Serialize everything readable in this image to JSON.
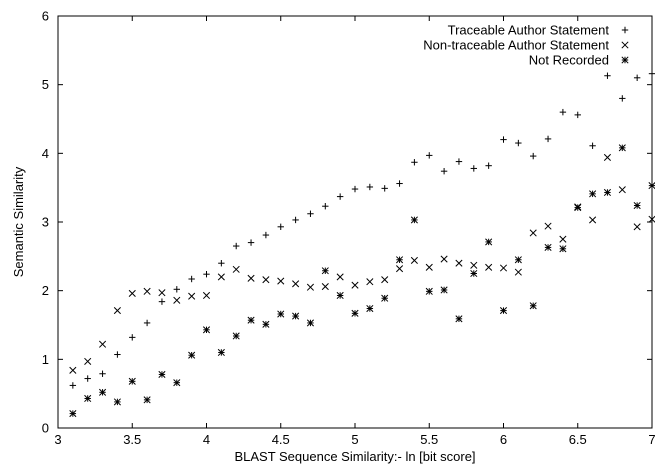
{
  "chart_data": {
    "type": "scatter",
    "xlabel": "BLAST Sequence Similarity:- ln [bit score]",
    "ylabel": "Semantic Similarity",
    "xlim": [
      3,
      7
    ],
    "ylim": [
      0,
      6
    ],
    "xticks": [
      "3",
      "3.5",
      "4",
      "4.5",
      "5",
      "5.5",
      "6",
      "6.5",
      "7"
    ],
    "yticks": [
      "0",
      "1",
      "2",
      "3",
      "4",
      "5",
      "6"
    ],
    "grid": false,
    "legend_position": "top-right",
    "series": [
      {
        "name": "Traceable Author Statement",
        "marker": "plus",
        "points": [
          [
            3.1,
            0.62
          ],
          [
            3.2,
            0.72
          ],
          [
            3.3,
            0.79
          ],
          [
            3.4,
            1.07
          ],
          [
            3.5,
            1.32
          ],
          [
            3.6,
            1.53
          ],
          [
            3.7,
            1.84
          ],
          [
            3.8,
            2.02
          ],
          [
            3.9,
            2.17
          ],
          [
            4.0,
            2.24
          ],
          [
            4.1,
            2.4
          ],
          [
            4.2,
            2.65
          ],
          [
            4.3,
            2.7
          ],
          [
            4.4,
            2.81
          ],
          [
            4.5,
            2.93
          ],
          [
            4.6,
            3.03
          ],
          [
            4.7,
            3.12
          ],
          [
            4.8,
            3.23
          ],
          [
            4.9,
            3.37
          ],
          [
            5.0,
            3.48
          ],
          [
            5.1,
            3.51
          ],
          [
            5.2,
            3.49
          ],
          [
            5.3,
            3.56
          ],
          [
            5.4,
            3.87
          ],
          [
            5.5,
            3.97
          ],
          [
            5.6,
            3.74
          ],
          [
            5.7,
            3.88
          ],
          [
            5.8,
            3.78
          ],
          [
            5.9,
            3.82
          ],
          [
            6.0,
            4.2
          ],
          [
            6.1,
            4.15
          ],
          [
            6.2,
            3.96
          ],
          [
            6.3,
            4.21
          ],
          [
            6.4,
            4.6
          ],
          [
            6.5,
            4.56
          ],
          [
            6.6,
            4.11
          ],
          [
            6.7,
            5.13
          ],
          [
            6.8,
            4.8
          ],
          [
            6.9,
            5.1
          ],
          [
            7.0,
            5.16
          ]
        ]
      },
      {
        "name": "Non-traceable Author Statement",
        "marker": "cross",
        "points": [
          [
            3.1,
            0.84
          ],
          [
            3.2,
            0.97
          ],
          [
            3.3,
            1.22
          ],
          [
            3.4,
            1.71
          ],
          [
            3.5,
            1.96
          ],
          [
            3.6,
            1.99
          ],
          [
            3.7,
            1.97
          ],
          [
            3.8,
            1.86
          ],
          [
            3.9,
            1.92
          ],
          [
            4.0,
            1.93
          ],
          [
            4.1,
            2.2
          ],
          [
            4.2,
            2.31
          ],
          [
            4.3,
            2.18
          ],
          [
            4.4,
            2.16
          ],
          [
            4.5,
            2.14
          ],
          [
            4.6,
            2.1
          ],
          [
            4.7,
            2.05
          ],
          [
            4.8,
            2.06
          ],
          [
            4.9,
            2.2
          ],
          [
            5.0,
            2.08
          ],
          [
            5.1,
            2.13
          ],
          [
            5.2,
            2.16
          ],
          [
            5.3,
            2.32
          ],
          [
            5.4,
            2.44
          ],
          [
            5.5,
            2.34
          ],
          [
            5.6,
            2.46
          ],
          [
            5.7,
            2.4
          ],
          [
            5.8,
            2.37
          ],
          [
            5.9,
            2.34
          ],
          [
            6.0,
            2.33
          ],
          [
            6.1,
            2.27
          ],
          [
            6.2,
            2.84
          ],
          [
            6.3,
            2.94
          ],
          [
            6.4,
            2.75
          ],
          [
            6.5,
            3.22
          ],
          [
            6.6,
            3.03
          ],
          [
            6.7,
            3.94
          ],
          [
            6.8,
            3.47
          ],
          [
            6.9,
            2.93
          ],
          [
            7.0,
            3.04
          ]
        ]
      },
      {
        "name": "Not Recorded",
        "marker": "star",
        "points": [
          [
            3.1,
            0.21
          ],
          [
            3.2,
            0.43
          ],
          [
            3.3,
            0.52
          ],
          [
            3.4,
            0.38
          ],
          [
            3.5,
            0.68
          ],
          [
            3.6,
            0.41
          ],
          [
            3.7,
            0.78
          ],
          [
            3.8,
            0.66
          ],
          [
            3.9,
            1.06
          ],
          [
            4.0,
            1.43
          ],
          [
            4.1,
            1.1
          ],
          [
            4.2,
            1.34
          ],
          [
            4.3,
            1.57
          ],
          [
            4.4,
            1.51
          ],
          [
            4.5,
            1.66
          ],
          [
            4.6,
            1.63
          ],
          [
            4.7,
            1.53
          ],
          [
            4.8,
            2.29
          ],
          [
            4.9,
            1.93
          ],
          [
            5.0,
            1.67
          ],
          [
            5.1,
            1.74
          ],
          [
            5.2,
            1.89
          ],
          [
            5.3,
            2.45
          ],
          [
            5.4,
            3.03
          ],
          [
            5.5,
            1.99
          ],
          [
            5.6,
            2.01
          ],
          [
            5.7,
            1.59
          ],
          [
            5.8,
            2.25
          ],
          [
            5.9,
            2.71
          ],
          [
            6.0,
            1.71
          ],
          [
            6.1,
            2.45
          ],
          [
            6.2,
            1.78
          ],
          [
            6.3,
            2.63
          ],
          [
            6.4,
            2.61
          ],
          [
            6.5,
            3.21
          ],
          [
            6.6,
            3.41
          ],
          [
            6.7,
            3.43
          ],
          [
            6.8,
            4.08
          ],
          [
            6.9,
            3.24
          ],
          [
            7.0,
            3.53
          ]
        ]
      }
    ]
  }
}
